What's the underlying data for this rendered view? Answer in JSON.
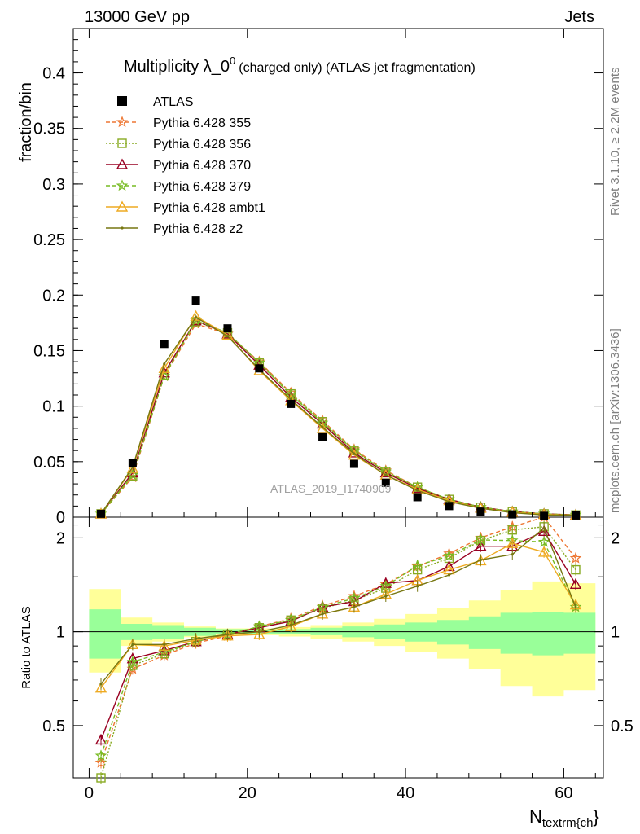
{
  "header": {
    "left": "13000 GeV pp",
    "right": "Jets"
  },
  "side_labels": {
    "rivet": "Rivet 3.1.10, ≥ 2.2M events",
    "mcplots": "mcplots.cern.ch [arXiv:1306.3436]"
  },
  "chart_data": {
    "type": "line",
    "title": "Multiplicity λ_0^0 (charged only) (ATLAS jet fragmentation)",
    "title_main": "Multiplicity λ_0",
    "title_sup": "0",
    "title_rest": "(charged only) (ATLAS jet fragmentation)",
    "watermark": "ATLAS_2019_I1740909",
    "xlabel_main": "N",
    "xlabel_sub": "textrm{ch",
    "xlabel_end": "}",
    "ylabel_main": "fraction/bin",
    "ylabel_ratio": "Ratio to ATLAS",
    "xlim": [
      -2,
      65
    ],
    "ylim_main": [
      0,
      0.44
    ],
    "ylim_ratio": [
      0.34,
      2.33
    ],
    "ratio_scale": "log",
    "x_ticks": [
      "0",
      "20",
      "40",
      "60"
    ],
    "y_ticks_main": [
      "0",
      "0.05",
      "0.1",
      "0.15",
      "0.2",
      "0.25",
      "0.3",
      "0.35",
      "0.4"
    ],
    "y_ticks_ratio": [
      "0.5",
      "1",
      "2"
    ],
    "legend_position": "top-left",
    "x": [
      1.5,
      5.5,
      9.5,
      13.5,
      17.5,
      21.5,
      25.5,
      29.5,
      33.5,
      37.5,
      41.5,
      45.5,
      49.5,
      53.5,
      57.5,
      61.5
    ],
    "bin_edges": [
      0,
      4,
      8,
      12,
      16,
      20,
      24,
      28,
      32,
      36,
      40,
      44,
      48,
      52,
      56,
      60,
      64
    ],
    "data": {
      "name": "ATLAS",
      "color": "#000000",
      "values": [
        0.003,
        0.049,
        0.156,
        0.195,
        0.17,
        0.134,
        0.102,
        0.072,
        0.048,
        0.031,
        0.018,
        0.01,
        0.005,
        0.0025,
        0.0012,
        0.0015
      ]
    },
    "band_inner": [
      0.82,
      0.94,
      0.95,
      0.97,
      0.98,
      0.985,
      0.98,
      0.975,
      0.96,
      0.945,
      0.93,
      0.91,
      0.88,
      0.85,
      0.84,
      0.85
    ],
    "band_inner_hi": [
      1.18,
      1.06,
      1.05,
      1.03,
      1.02,
      1.015,
      1.02,
      1.03,
      1.04,
      1.055,
      1.07,
      1.09,
      1.12,
      1.15,
      1.16,
      1.15
    ],
    "band_outer": [
      0.74,
      0.9,
      0.93,
      0.96,
      0.975,
      0.975,
      0.965,
      0.95,
      0.93,
      0.9,
      0.86,
      0.82,
      0.76,
      0.67,
      0.62,
      0.65
    ],
    "band_outer_hi": [
      1.37,
      1.11,
      1.07,
      1.04,
      1.025,
      1.025,
      1.035,
      1.05,
      1.07,
      1.1,
      1.14,
      1.19,
      1.26,
      1.36,
      1.45,
      1.43
    ],
    "series": [
      {
        "name": "Pythia 6.428 355",
        "color": "#ee7733",
        "dash": "5,3",
        "marker": "star",
        "values": [
          0.003,
          0.036,
          0.127,
          0.174,
          0.165,
          0.14,
          0.112,
          0.087,
          0.061,
          0.042,
          0.027,
          0.016,
          0.009,
          0.005,
          0.003,
          0.002
        ],
        "ratio": [
          0.38,
          0.76,
          0.84,
          0.92,
          0.97,
          1.04,
          1.1,
          1.21,
          1.3,
          1.42,
          1.62,
          1.78,
          2.0,
          2.17,
          2.33,
          1.72
        ]
      },
      {
        "name": "Pythia 6.428 356",
        "color": "#88aa22",
        "dash": "2,2",
        "marker": "square",
        "values": [
          0.003,
          0.037,
          0.128,
          0.176,
          0.166,
          0.139,
          0.111,
          0.086,
          0.06,
          0.041,
          0.027,
          0.016,
          0.009,
          0.005,
          0.003,
          0.002
        ],
        "ratio": [
          0.34,
          0.78,
          0.85,
          0.93,
          0.98,
          1.03,
          1.09,
          1.19,
          1.26,
          1.38,
          1.58,
          1.72,
          1.96,
          2.12,
          2.17,
          1.58
        ]
      },
      {
        "name": "Pythia 6.428 370",
        "color": "#990022",
        "dash": "",
        "marker": "triangle",
        "values": [
          0.003,
          0.04,
          0.13,
          0.177,
          0.165,
          0.137,
          0.108,
          0.084,
          0.058,
          0.04,
          0.026,
          0.016,
          0.009,
          0.005,
          0.003,
          0.002
        ],
        "ratio": [
          0.45,
          0.82,
          0.87,
          0.93,
          0.98,
          1.03,
          1.08,
          1.2,
          1.25,
          1.43,
          1.46,
          1.62,
          1.88,
          1.88,
          2.1,
          1.42
        ]
      },
      {
        "name": "Pythia 6.428 379",
        "color": "#77bb22",
        "dash": "5,3",
        "marker": "star",
        "values": [
          0.003,
          0.038,
          0.127,
          0.177,
          0.166,
          0.139,
          0.11,
          0.085,
          0.06,
          0.041,
          0.027,
          0.016,
          0.009,
          0.005,
          0.003,
          0.002
        ],
        "ratio": [
          0.4,
          0.8,
          0.86,
          0.93,
          0.98,
          1.04,
          1.09,
          1.2,
          1.28,
          1.4,
          1.63,
          1.75,
          1.97,
          1.96,
          1.94,
          1.2
        ]
      },
      {
        "name": "Pythia 6.428 ambt1",
        "color": "#eeaa22",
        "dash": "",
        "marker": "triangle",
        "values": [
          0.003,
          0.044,
          0.134,
          0.181,
          0.164,
          0.132,
          0.105,
          0.08,
          0.056,
          0.038,
          0.025,
          0.015,
          0.008,
          0.0045,
          0.0025,
          0.0018
        ],
        "ratio": [
          0.66,
          0.91,
          0.9,
          0.94,
          0.97,
          0.98,
          1.04,
          1.14,
          1.2,
          1.32,
          1.46,
          1.58,
          1.69,
          1.92,
          1.8,
          1.22
        ]
      },
      {
        "name": "Pythia 6.428 z2",
        "color": "#777711",
        "dash": "",
        "marker": "dot",
        "values": [
          0.003,
          0.045,
          0.138,
          0.18,
          0.163,
          0.133,
          0.106,
          0.081,
          0.057,
          0.038,
          0.024,
          0.014,
          0.008,
          0.004,
          0.002,
          0.0018
        ],
        "ratio": [
          0.68,
          0.91,
          0.91,
          0.95,
          0.98,
          1.0,
          1.05,
          1.14,
          1.2,
          1.3,
          1.4,
          1.52,
          1.7,
          1.77,
          2.15,
          1.2
        ]
      }
    ]
  }
}
